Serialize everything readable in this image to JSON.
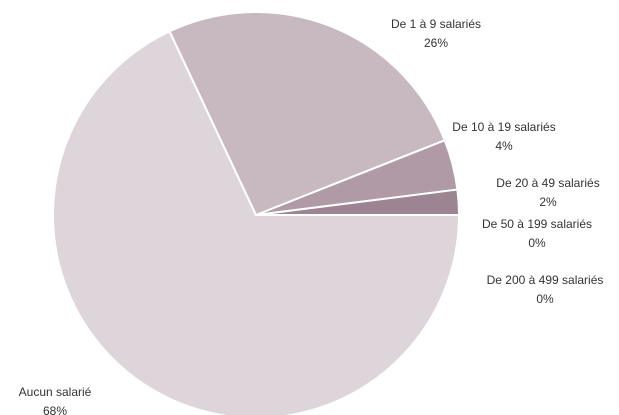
{
  "chart_data": {
    "type": "pie",
    "categories": [
      "Aucun salarié",
      "De 1 à 9 salariés",
      "De 10 à 19 salariés",
      "De 20 à 49 salariés",
      "De 50 à 199 salariés",
      "De 200 à 499 salariés"
    ],
    "values": [
      68,
      26,
      4,
      2,
      0,
      0
    ],
    "value_labels": [
      "68%",
      "26%",
      "4%",
      "2%",
      "0%",
      "0%"
    ],
    "colors": [
      "#ddd5da",
      "#c8b8c0",
      "#b09aa6",
      "#9c8492",
      "#1aa9a5",
      "#8fa8b8"
    ]
  }
}
